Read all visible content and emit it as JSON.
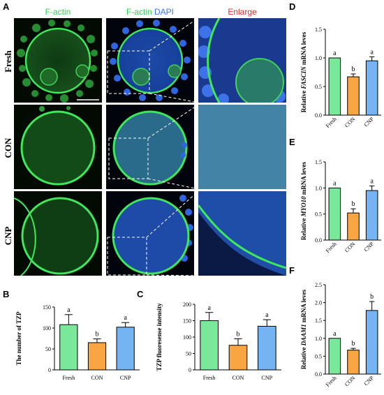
{
  "panel_a": {
    "letter": "A",
    "col_headers": [
      {
        "parts": [
          {
            "text": "F-actin",
            "color": "#2bd352"
          }
        ]
      },
      {
        "parts": [
          {
            "text": "F-actin",
            "color": "#2bd352"
          },
          {
            "text": " DAPI",
            "color": "#3a78f0"
          }
        ]
      },
      {
        "parts": [
          {
            "text": "Enlarge",
            "color": "#e8282a"
          }
        ]
      }
    ],
    "row_labels": [
      "Fresh",
      "CON",
      "CNP"
    ]
  },
  "colors": {
    "fresh": "#7ae89a",
    "con": "#f8a542",
    "cnp": "#74b4f2",
    "green_stain": "#2fd24a",
    "blue_stain": "#2c5fc8"
  },
  "chart_data": [
    {
      "panel": "B",
      "type": "bar",
      "categories": [
        "Fresh",
        "CON",
        "CNP"
      ],
      "values": [
        108,
        65,
        102
      ],
      "errors": [
        24,
        9,
        11
      ],
      "letters": [
        "a",
        "b",
        "a"
      ],
      "ylabel": "The number of TZP",
      "ylim": [
        0,
        150
      ],
      "yticks": [
        0,
        50,
        100,
        150
      ],
      "colors": [
        "#7ae89a",
        "#f8a542",
        "#74b4f2"
      ]
    },
    {
      "panel": "C",
      "type": "bar",
      "categories": [
        "Fresh",
        "CON",
        "CNP"
      ],
      "values": [
        150,
        75,
        133
      ],
      "errors": [
        25,
        20,
        20
      ],
      "letters": [
        "a",
        "b",
        "a"
      ],
      "ylabel": "TZP fluoresense intensity",
      "ylim": [
        0,
        200
      ],
      "yticks": [
        0,
        50,
        100,
        150,
        200
      ],
      "colors": [
        "#7ae89a",
        "#f8a542",
        "#74b4f2"
      ]
    },
    {
      "panel": "D",
      "type": "bar",
      "categories": [
        "Fresh",
        "CON",
        "CNP"
      ],
      "values": [
        1.0,
        0.67,
        0.95
      ],
      "errors": [
        0.0,
        0.05,
        0.07
      ],
      "letters": [
        "a",
        "b",
        "a"
      ],
      "ylabel_prefix": "Relative ",
      "ylabel_gene": "FASCIN",
      "ylabel_suffix": " mRNA leves",
      "ylim": [
        0,
        1.5
      ],
      "yticks": [
        "0.0",
        "0.5",
        "1.0",
        "1.5"
      ],
      "colors": [
        "#7ae89a",
        "#f8a542",
        "#74b4f2"
      ]
    },
    {
      "panel": "E",
      "type": "bar",
      "categories": [
        "Fresh",
        "CON",
        "CNP"
      ],
      "values": [
        1.0,
        0.52,
        0.95
      ],
      "errors": [
        0.0,
        0.08,
        0.09
      ],
      "letters": [
        "a",
        "b",
        "a"
      ],
      "ylabel_prefix": "Relative ",
      "ylabel_gene": "MYO10",
      "ylabel_suffix": " mRNA leves",
      "ylim": [
        0,
        1.5
      ],
      "yticks": [
        "0.0",
        "0.5",
        "1.0",
        "1.5"
      ],
      "colors": [
        "#7ae89a",
        "#f8a542",
        "#74b4f2"
      ]
    },
    {
      "panel": "F",
      "type": "bar",
      "categories": [
        "Fresh",
        "CON",
        "CNP"
      ],
      "values": [
        1.0,
        0.67,
        1.78
      ],
      "errors": [
        0.0,
        0.05,
        0.25
      ],
      "letters": [
        "a",
        "b",
        "b"
      ],
      "ylabel_prefix": "Relative ",
      "ylabel_gene": "DAAM1",
      "ylabel_suffix": " mRNA leves",
      "ylim": [
        0,
        2.5
      ],
      "yticks": [
        "0.0",
        "0.5",
        "1.0",
        "1.5",
        "2.0",
        "2.5"
      ],
      "colors": [
        "#7ae89a",
        "#f8a542",
        "#74b4f2"
      ]
    }
  ]
}
